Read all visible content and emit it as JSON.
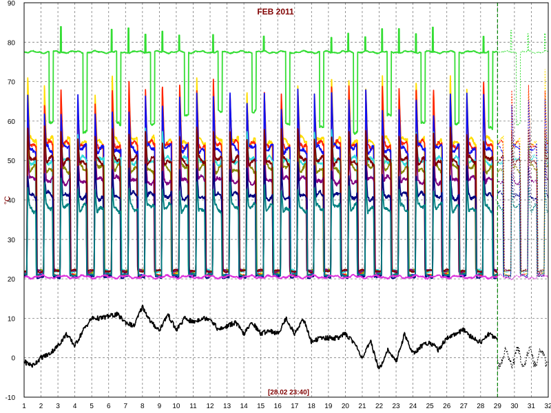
{
  "chart_data": {
    "type": "line",
    "title": "FEB 2011",
    "timestamp": "[28.02 23:40]",
    "ylabel": "°C",
    "xlabel": "",
    "xlim": [
      1,
      32
    ],
    "ylim": [
      -10,
      90
    ],
    "x_ticks": [
      "1",
      "2",
      "3",
      "4",
      "5",
      "6",
      "7",
      "8",
      "9",
      "10",
      "11",
      "12",
      "13",
      "14",
      "15",
      "16",
      "17",
      "18",
      "19",
      "20",
      "21",
      "22",
      "23",
      "24",
      "25",
      "26",
      "27",
      "28",
      "29",
      "30",
      "31",
      "32"
    ],
    "y_ticks": [
      "-10",
      "0",
      "10",
      "20",
      "30",
      "40",
      "50",
      "60",
      "70",
      "80",
      "90"
    ],
    "grid": true,
    "data_end_day": 29,
    "series": [
      {
        "color": "#33dd33",
        "style": "cycle",
        "base": 77.5,
        "peak": 84,
        "trough": 57
      },
      {
        "color": "#ffdd00",
        "style": "cycle",
        "base": 55,
        "peak": 73,
        "trough": 21
      },
      {
        "color": "#ff2200",
        "style": "cycle",
        "base": 54,
        "peak": 71,
        "trough": 21
      },
      {
        "color": "#1111ee",
        "style": "cycle",
        "base": 53,
        "peak": 69,
        "trough": 21
      },
      {
        "color": "#33dddd",
        "style": "cycle",
        "base": 50,
        "peak": 58,
        "trough": 22
      },
      {
        "color": "#888800",
        "style": "cycle",
        "base": 48,
        "peak": 56,
        "trough": 22
      },
      {
        "color": "#800080",
        "style": "cycle",
        "base": 45,
        "peak": 55,
        "trough": 22
      },
      {
        "color": "#800000",
        "style": "cycle",
        "base": 50,
        "peak": 59,
        "trough": 22
      },
      {
        "color": "#000080",
        "style": "cycle",
        "base": 41,
        "peak": 50,
        "trough": 20.5
      },
      {
        "color": "#008080",
        "style": "cycle",
        "base": 38,
        "peak": 46,
        "trough": 21
      },
      {
        "color": "#dd33dd",
        "style": "flat",
        "base": 20.5
      },
      {
        "color": "#000000",
        "style": "outdoor",
        "days": [
          1,
          1.5,
          2,
          2.5,
          3,
          3.5,
          4,
          4.5,
          5,
          5.5,
          6,
          6.5,
          7,
          7.5,
          8,
          8.5,
          9,
          9.5,
          10,
          10.5,
          11,
          11.5,
          12,
          12.5,
          13,
          13.5,
          14,
          14.5,
          15,
          15.5,
          16,
          16.5,
          17,
          17.5,
          18,
          18.5,
          19,
          19.5,
          20,
          20.5,
          21,
          21.5,
          22,
          22.5,
          23,
          23.5,
          24,
          24.5,
          25,
          25.5,
          26,
          26.5,
          27,
          27.5,
          28,
          28.5,
          29
        ],
        "values": [
          -1,
          -2,
          0,
          1,
          3,
          6,
          3,
          7,
          10,
          10,
          10.5,
          11,
          9,
          8,
          13,
          9,
          7,
          11,
          7,
          10,
          9,
          10,
          10,
          7,
          8,
          9,
          6,
          9,
          6,
          7,
          6,
          10,
          6,
          10,
          4,
          5,
          5,
          5,
          6,
          4,
          0,
          4,
          -3,
          2,
          -1,
          6,
          1,
          3,
          4,
          2,
          5,
          6,
          7,
          5,
          4,
          6,
          5
        ]
      }
    ]
  }
}
